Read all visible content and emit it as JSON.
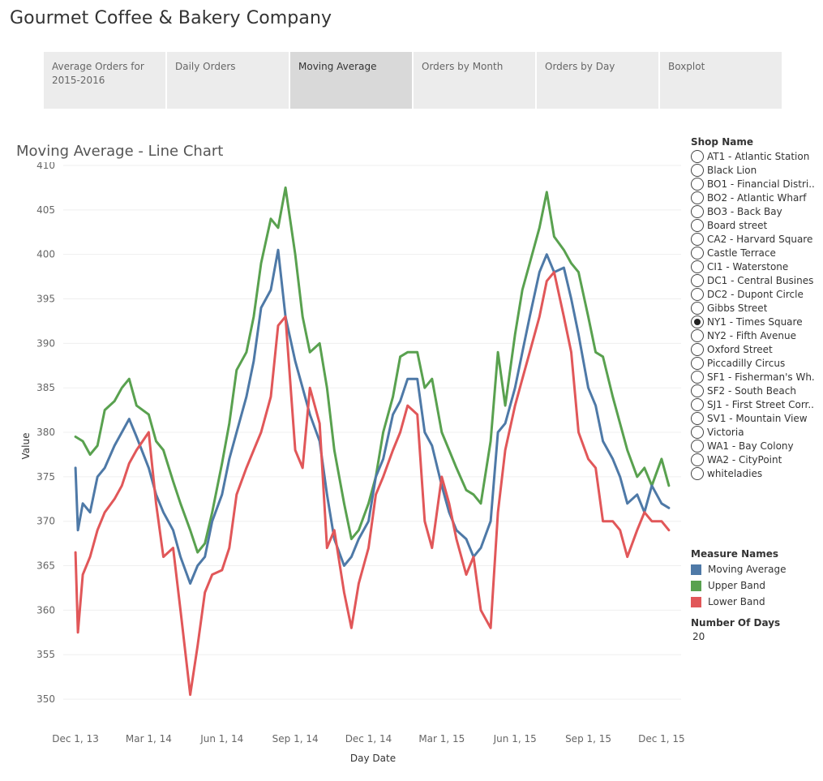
{
  "app_title": "Gourmet Coffee & Bakery Company",
  "tabs": [
    {
      "label": "Average Orders for 2015-2016",
      "active": false
    },
    {
      "label": "Daily Orders",
      "active": false
    },
    {
      "label": "Moving Average",
      "active": true
    },
    {
      "label": "Orders by Month",
      "active": false
    },
    {
      "label": "Orders by Day",
      "active": false
    },
    {
      "label": "Boxplot",
      "active": false
    }
  ],
  "shop_filter": {
    "title": "Shop Name",
    "selected": "NY1 - Times Square",
    "options": [
      "AT1 - Atlantic Station",
      "Black Lion",
      "BO1 - Financial Distri..",
      "BO2 - Atlantic Wharf",
      "BO3 - Back Bay",
      "Board street",
      "CA2 - Harvard Square",
      "Castle Terrace",
      "CI1 - Waterstone",
      "DC1 - Central Busines..",
      "DC2 - Dupont Circle",
      "Gibbs Street",
      "NY1 - Times Square",
      "NY2 - Fifth Avenue",
      "Oxford Street",
      "Piccadilly Circus",
      "SF1 - Fisherman's Wh..",
      "SF2 - South Beach",
      "SJ1 - First Street Corr..",
      "SV1 - Mountain View",
      "Victoria",
      "WA1 - Bay Colony",
      "WA2 - CityPoint",
      "whiteladies"
    ]
  },
  "measure_legend": {
    "title": "Measure Names",
    "items": [
      {
        "label": "Moving Average",
        "color": "#4e79a7"
      },
      {
        "label": "Upper Band",
        "color": "#59a14f"
      },
      {
        "label": "Lower Band",
        "color": "#e15759"
      }
    ]
  },
  "parameter": {
    "title": "Number Of Days",
    "value": "20"
  },
  "chart_data": {
    "type": "line",
    "title": "Moving Average - Line Chart",
    "xlabel": "Day Date",
    "ylabel": "Value",
    "ylim": [
      348,
      410
    ],
    "yticks": [
      350,
      355,
      360,
      365,
      370,
      375,
      380,
      385,
      390,
      395,
      400,
      405,
      410
    ],
    "x_tick_labels": [
      "Dec 1, 13",
      "Mar 1, 14",
      "Jun 1, 14",
      "Sep 1, 14",
      "Dec 1, 14",
      "Mar 1, 15",
      "Jun 1, 15",
      "Sep 1, 15",
      "Dec 1, 15"
    ],
    "x_unit": "months since Dec 1, 2013",
    "xlim": [
      -0.5,
      24.8
    ],
    "gridlines": true,
    "series": [
      {
        "name": "Upper Band",
        "color": "#59a14f",
        "x": [
          0.0,
          0.3,
          0.6,
          0.9,
          1.2,
          1.6,
          1.9,
          2.2,
          2.5,
          3.0,
          3.3,
          3.6,
          4.0,
          4.3,
          4.7,
          5.0,
          5.3,
          5.6,
          6.0,
          6.3,
          6.6,
          7.0,
          7.3,
          7.6,
          8.0,
          8.3,
          8.6,
          9.0,
          9.3,
          9.6,
          10.0,
          10.3,
          10.6,
          11.0,
          11.3,
          11.6,
          12.0,
          12.3,
          12.6,
          13.0,
          13.3,
          13.6,
          14.0,
          14.3,
          14.6,
          15.0,
          15.3,
          15.6,
          16.0,
          16.3,
          16.6,
          17.0,
          17.3,
          17.6,
          18.0,
          18.3,
          18.6,
          19.0,
          19.3,
          19.6,
          20.0,
          20.3,
          20.6,
          21.0,
          21.3,
          21.6,
          22.0,
          22.3,
          22.6,
          23.0,
          23.3,
          23.6,
          24.0,
          24.3
        ],
        "values": [
          379.5,
          379.0,
          377.5,
          378.5,
          382.5,
          383.5,
          385.0,
          386.0,
          383.0,
          382.0,
          379.0,
          378.0,
          374.5,
          372.0,
          369.0,
          366.5,
          367.5,
          371.0,
          376.5,
          381.0,
          387.0,
          389.0,
          393.0,
          399.0,
          404.0,
          403.0,
          407.5,
          400.0,
          393.0,
          389.0,
          390.0,
          385.0,
          378.0,
          372.0,
          368.0,
          369.0,
          372.0,
          375.0,
          380.0,
          384.0,
          388.5,
          389.0,
          389.0,
          385.0,
          386.0,
          380.0,
          378.0,
          376.0,
          373.5,
          373.0,
          372.0,
          379.0,
          389.0,
          383.0,
          391.0,
          396.0,
          399.0,
          403.0,
          407.0,
          402.0,
          400.5,
          399.0,
          398.0,
          393.0,
          389.0,
          388.5,
          384.0,
          381.0,
          378.0,
          375.0,
          376.0,
          374.0,
          377.0,
          374.0
        ]
      },
      {
        "name": "Moving Average",
        "color": "#4e79a7",
        "x": [
          0.0,
          0.1,
          0.3,
          0.6,
          0.9,
          1.2,
          1.6,
          1.9,
          2.2,
          2.5,
          3.0,
          3.3,
          3.6,
          4.0,
          4.3,
          4.7,
          5.0,
          5.3,
          5.6,
          6.0,
          6.3,
          6.6,
          7.0,
          7.3,
          7.6,
          8.0,
          8.3,
          8.6,
          9.0,
          9.3,
          9.6,
          10.0,
          10.3,
          10.6,
          11.0,
          11.3,
          11.6,
          12.0,
          12.3,
          12.6,
          13.0,
          13.3,
          13.6,
          14.0,
          14.3,
          14.6,
          15.0,
          15.3,
          15.6,
          16.0,
          16.3,
          16.6,
          17.0,
          17.3,
          17.6,
          18.0,
          18.3,
          18.6,
          19.0,
          19.3,
          19.6,
          20.0,
          20.3,
          20.6,
          21.0,
          21.3,
          21.6,
          22.0,
          22.3,
          22.6,
          23.0,
          23.3,
          23.6,
          24.0,
          24.3
        ],
        "values": [
          376.0,
          369.0,
          372.0,
          371.0,
          375.0,
          376.0,
          378.5,
          380.0,
          381.5,
          379.5,
          376.0,
          373.0,
          371.0,
          369.0,
          366.0,
          363.0,
          365.0,
          366.0,
          370.0,
          373.0,
          377.0,
          380.0,
          384.0,
          388.0,
          394.0,
          396.0,
          400.5,
          393.0,
          388.0,
          385.0,
          382.0,
          379.0,
          373.0,
          368.0,
          365.0,
          366.0,
          368.0,
          370.0,
          375.0,
          377.0,
          382.0,
          383.5,
          386.0,
          386.0,
          380.0,
          378.5,
          374.0,
          371.0,
          369.0,
          368.0,
          366.0,
          367.0,
          370.0,
          380.0,
          381.0,
          385.0,
          389.0,
          393.0,
          398.0,
          400.0,
          398.0,
          398.5,
          395.0,
          391.0,
          385.0,
          383.0,
          379.0,
          377.0,
          375.0,
          372.0,
          373.0,
          371.0,
          374.0,
          372.0,
          371.5
        ]
      },
      {
        "name": "Lower Band",
        "color": "#e15759",
        "x": [
          0.0,
          0.1,
          0.3,
          0.6,
          0.9,
          1.2,
          1.6,
          1.9,
          2.2,
          2.5,
          3.0,
          3.3,
          3.6,
          4.0,
          4.3,
          4.7,
          5.0,
          5.3,
          5.6,
          6.0,
          6.3,
          6.6,
          7.0,
          7.3,
          7.6,
          8.0,
          8.3,
          8.6,
          9.0,
          9.3,
          9.6,
          10.0,
          10.3,
          10.6,
          11.0,
          11.3,
          11.6,
          12.0,
          12.3,
          12.6,
          13.0,
          13.3,
          13.6,
          14.0,
          14.3,
          14.6,
          15.0,
          15.3,
          15.6,
          16.0,
          16.3,
          16.6,
          17.0,
          17.3,
          17.6,
          18.0,
          18.3,
          18.6,
          19.0,
          19.3,
          19.6,
          20.0,
          20.3,
          20.6,
          21.0,
          21.3,
          21.6,
          22.0,
          22.3,
          22.6,
          23.0,
          23.3,
          23.6,
          24.0,
          24.3
        ],
        "values": [
          366.5,
          357.5,
          364.0,
          366.0,
          369.0,
          371.0,
          372.5,
          374.0,
          376.5,
          378.0,
          380.0,
          372.0,
          366.0,
          367.0,
          360.0,
          350.5,
          356.0,
          362.0,
          364.0,
          364.5,
          367.0,
          373.0,
          376.0,
          378.0,
          380.0,
          384.0,
          392.0,
          393.0,
          378.0,
          376.0,
          385.0,
          381.0,
          367.0,
          369.0,
          362.0,
          358.0,
          363.0,
          367.0,
          373.0,
          375.0,
          378.0,
          380.0,
          383.0,
          382.0,
          370.0,
          367.0,
          375.0,
          372.0,
          368.0,
          364.0,
          366.0,
          360.0,
          358.0,
          371.0,
          378.0,
          383.0,
          386.0,
          389.0,
          393.0,
          397.0,
          398.0,
          393.0,
          389.0,
          380.0,
          377.0,
          376.0,
          370.0,
          370.0,
          369.0,
          366.0,
          369.0,
          371.0,
          370.0,
          370.0,
          369.0
        ]
      }
    ]
  }
}
